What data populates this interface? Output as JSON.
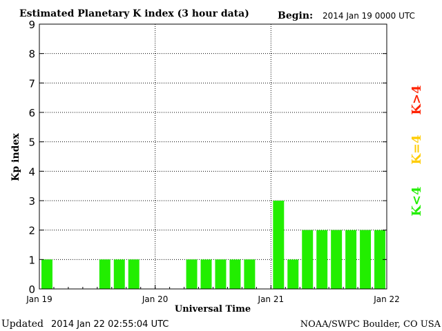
{
  "header": {
    "title": "Estimated Planetary K index (3 hour data)",
    "begin_label": "Begin:",
    "begin_value": "2014 Jan 19 0000 UTC"
  },
  "footer": {
    "updated_label": "Updated",
    "updated_value": "2014 Jan 22 02:55:04 UTC",
    "credit": "NOAA/SWPC Boulder, CO USA"
  },
  "legend": {
    "items": [
      {
        "label": "K>4",
        "color": "#ff2200"
      },
      {
        "label": "K=4",
        "color": "#ffcc00"
      },
      {
        "label": "K<4",
        "color": "#22ee00"
      }
    ]
  },
  "chart_data": {
    "type": "bar",
    "title": "Estimated Planetary K index (3 hour data)",
    "xlabel": "Universal Time",
    "ylabel": "Kp index",
    "ylim": [
      0,
      9
    ],
    "yticks": [
      "0",
      "1",
      "2",
      "3",
      "4",
      "5",
      "6",
      "7",
      "8",
      "9"
    ],
    "xticks": [
      "Jan 19",
      "Jan 20",
      "Jan 21",
      "Jan 22"
    ],
    "interval_hours": 3,
    "values": [
      1,
      0,
      0,
      0,
      1,
      1,
      1,
      0,
      0,
      0,
      1,
      1,
      1,
      1,
      1,
      0,
      3,
      1,
      2,
      2,
      2,
      2,
      2,
      2
    ],
    "bar_color": "#22ee00",
    "grid": true
  }
}
